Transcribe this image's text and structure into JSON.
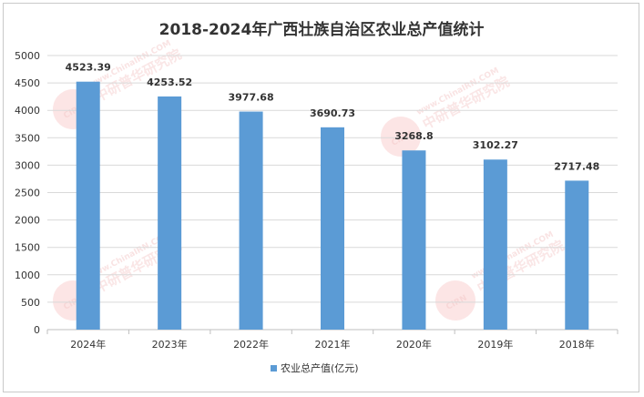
{
  "chart_data": {
    "type": "bar",
    "title": "2018-2024年广西壮族自治区农业总产值统计",
    "categories": [
      "2024年",
      "2023年",
      "2022年",
      "2021年",
      "2020年",
      "2019年",
      "2018年"
    ],
    "series": [
      {
        "name": "农业总产值(亿元)",
        "values": [
          4523.39,
          4253.52,
          3977.68,
          3690.73,
          3268.8,
          3102.27,
          2717.48
        ]
      }
    ],
    "data_labels": [
      "4523.39",
      "4253.52",
      "3977.68",
      "3690.73",
      "3268.8",
      "3102.27",
      "2717.48"
    ],
    "yticks": [
      "0",
      "500",
      "1000",
      "1500",
      "2000",
      "2500",
      "3000",
      "3500",
      "4000",
      "4500",
      "5000"
    ],
    "ylim": [
      0,
      5000
    ],
    "grid": true,
    "legend_position": "bottom",
    "bar_color": "#5b9bd5"
  },
  "watermark": {
    "url": "www.ChinaIRN.COM",
    "brand": "中研普华研究院",
    "logo": "CIRN"
  }
}
